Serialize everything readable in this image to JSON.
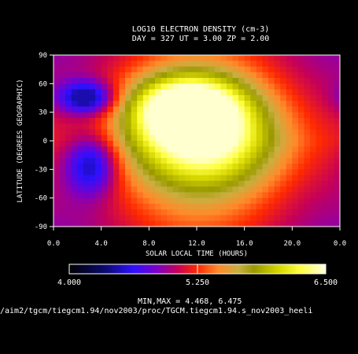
{
  "chart_data": {
    "type": "heatmap",
    "title_line1": "LOG10 ELECTRON DENSITY (cm-3)",
    "title_line2": "DAY = 327   UT =   3.00   ZP =    2.00",
    "xlabel": "SOLAR LOCAL TIME (HOURS)",
    "ylabel": "LATITUDE (DEGREES GEOGRAPHIC)",
    "x_ticks": [
      "0.0",
      "4.0",
      "8.0",
      "12.0",
      "16.0",
      "20.0",
      "0.0"
    ],
    "y_ticks": [
      "90",
      "60",
      "30",
      "0",
      "-30",
      "-60",
      "-90"
    ],
    "xlim": [
      0,
      24
    ],
    "ylim": [
      -90,
      90
    ],
    "colorbar": {
      "min": 4.0,
      "max": 6.5,
      "mid": 5.25,
      "labels": [
        "4.000",
        "5.250",
        "6.500"
      ]
    },
    "minmax_text": "MIN,MAX =        4.468,      6.475",
    "data_range": [
      4.468,
      6.475
    ],
    "features": [
      {
        "lt": 12.5,
        "lat": 5,
        "value": 6.45,
        "spread_lt": 4.2,
        "spread_lat": 40
      },
      {
        "lt": 11.0,
        "lat": 35,
        "value": 6.4,
        "spread_lt": 3.0,
        "spread_lat": 22
      },
      {
        "lt": 2.8,
        "lat": 45,
        "value": 4.5,
        "spread_lt": 1.6,
        "spread_lat": 12
      },
      {
        "lt": 3.2,
        "lat": -25,
        "value": 4.6,
        "spread_lt": 1.5,
        "spread_lat": 22
      }
    ]
  },
  "footer": {
    "path": "/aim2/tgcm/tiegcm1.94/nov2003/proc/TGCM.tiegcm1.94.s_nov2003_heeli"
  },
  "colors": {
    "background": "#000000",
    "text": "#ffffff"
  }
}
